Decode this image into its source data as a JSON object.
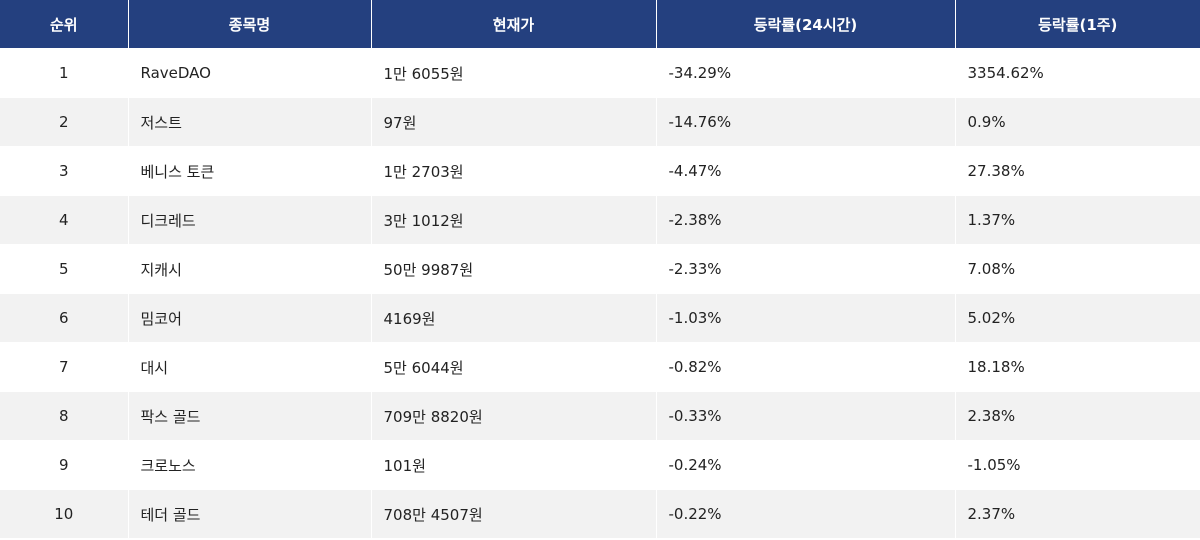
{
  "table": {
    "header": [
      "순위",
      "종목명",
      "현재가",
      "등락률(24시간)",
      "등락률(1주)"
    ],
    "rows": [
      [
        "1",
        "RaveDAO",
        "1만 6055원",
        "-34.29%",
        "3354.62%"
      ],
      [
        "2",
        "저스트",
        "97원",
        "-14.76%",
        "0.9%"
      ],
      [
        "3",
        "베니스 토큰",
        "1만 2703원",
        "-4.47%",
        "27.38%"
      ],
      [
        "4",
        "디크레드",
        "3만 1012원",
        "-2.38%",
        "1.37%"
      ],
      [
        "5",
        "지캐시",
        "50만 9987원",
        "-2.33%",
        "7.08%"
      ],
      [
        "6",
        "밈코어",
        "4169원",
        "-1.03%",
        "5.02%"
      ],
      [
        "7",
        "대시",
        "5만 6044원",
        "-0.82%",
        "18.18%"
      ],
      [
        "8",
        "팍스 골드",
        "709만 8820원",
        "-0.33%",
        "2.38%"
      ],
      [
        "9",
        "크로노스",
        "101원",
        "-0.24%",
        "-1.05%"
      ],
      [
        "10",
        "테더 골드",
        "708만 4507원",
        "-0.22%",
        "2.37%"
      ]
    ]
  }
}
